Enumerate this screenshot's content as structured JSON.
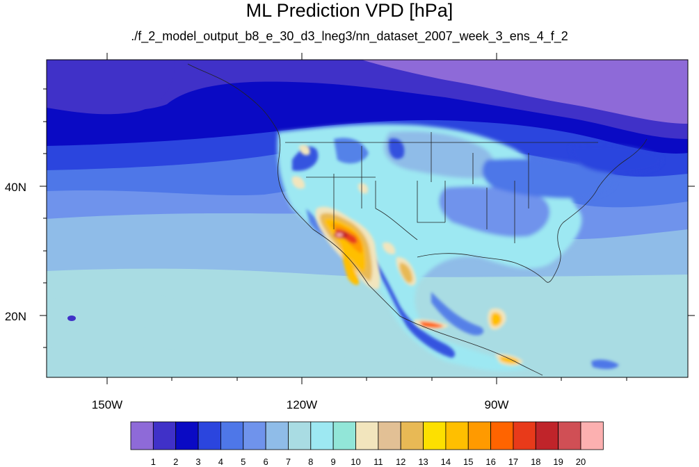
{
  "title": "ML Prediction VPD [hPa]",
  "subtitle": "./f_2_model_output_b8_e_30_d3_lneg3/nn_dataset_2007_week_3_ens_4_f_2",
  "map": {
    "longitude_labels": [
      "150W",
      "120W",
      "90W"
    ],
    "latitude_labels": [
      "40N",
      "20N"
    ]
  },
  "colorbar": {
    "labels": [
      "1",
      "2",
      "3",
      "4",
      "5",
      "6",
      "7",
      "8",
      "9",
      "10",
      "11",
      "12",
      "13",
      "14",
      "15",
      "16",
      "17",
      "18",
      "19",
      "20"
    ],
    "colors": [
      "#8e6ad8",
      "#4031c8",
      "#0a0ac4",
      "#2b45de",
      "#4e77e8",
      "#6f93ec",
      "#8fbce8",
      "#a9dce3",
      "#9de8f2",
      "#92e6d8",
      "#f2e5bd",
      "#e2c095",
      "#e8b955",
      "#fde000",
      "#ffbf00",
      "#ff9a00",
      "#ff6400",
      "#e83a1a",
      "#c0242a",
      "#d04f55",
      "#fcb0b0"
    ]
  }
}
